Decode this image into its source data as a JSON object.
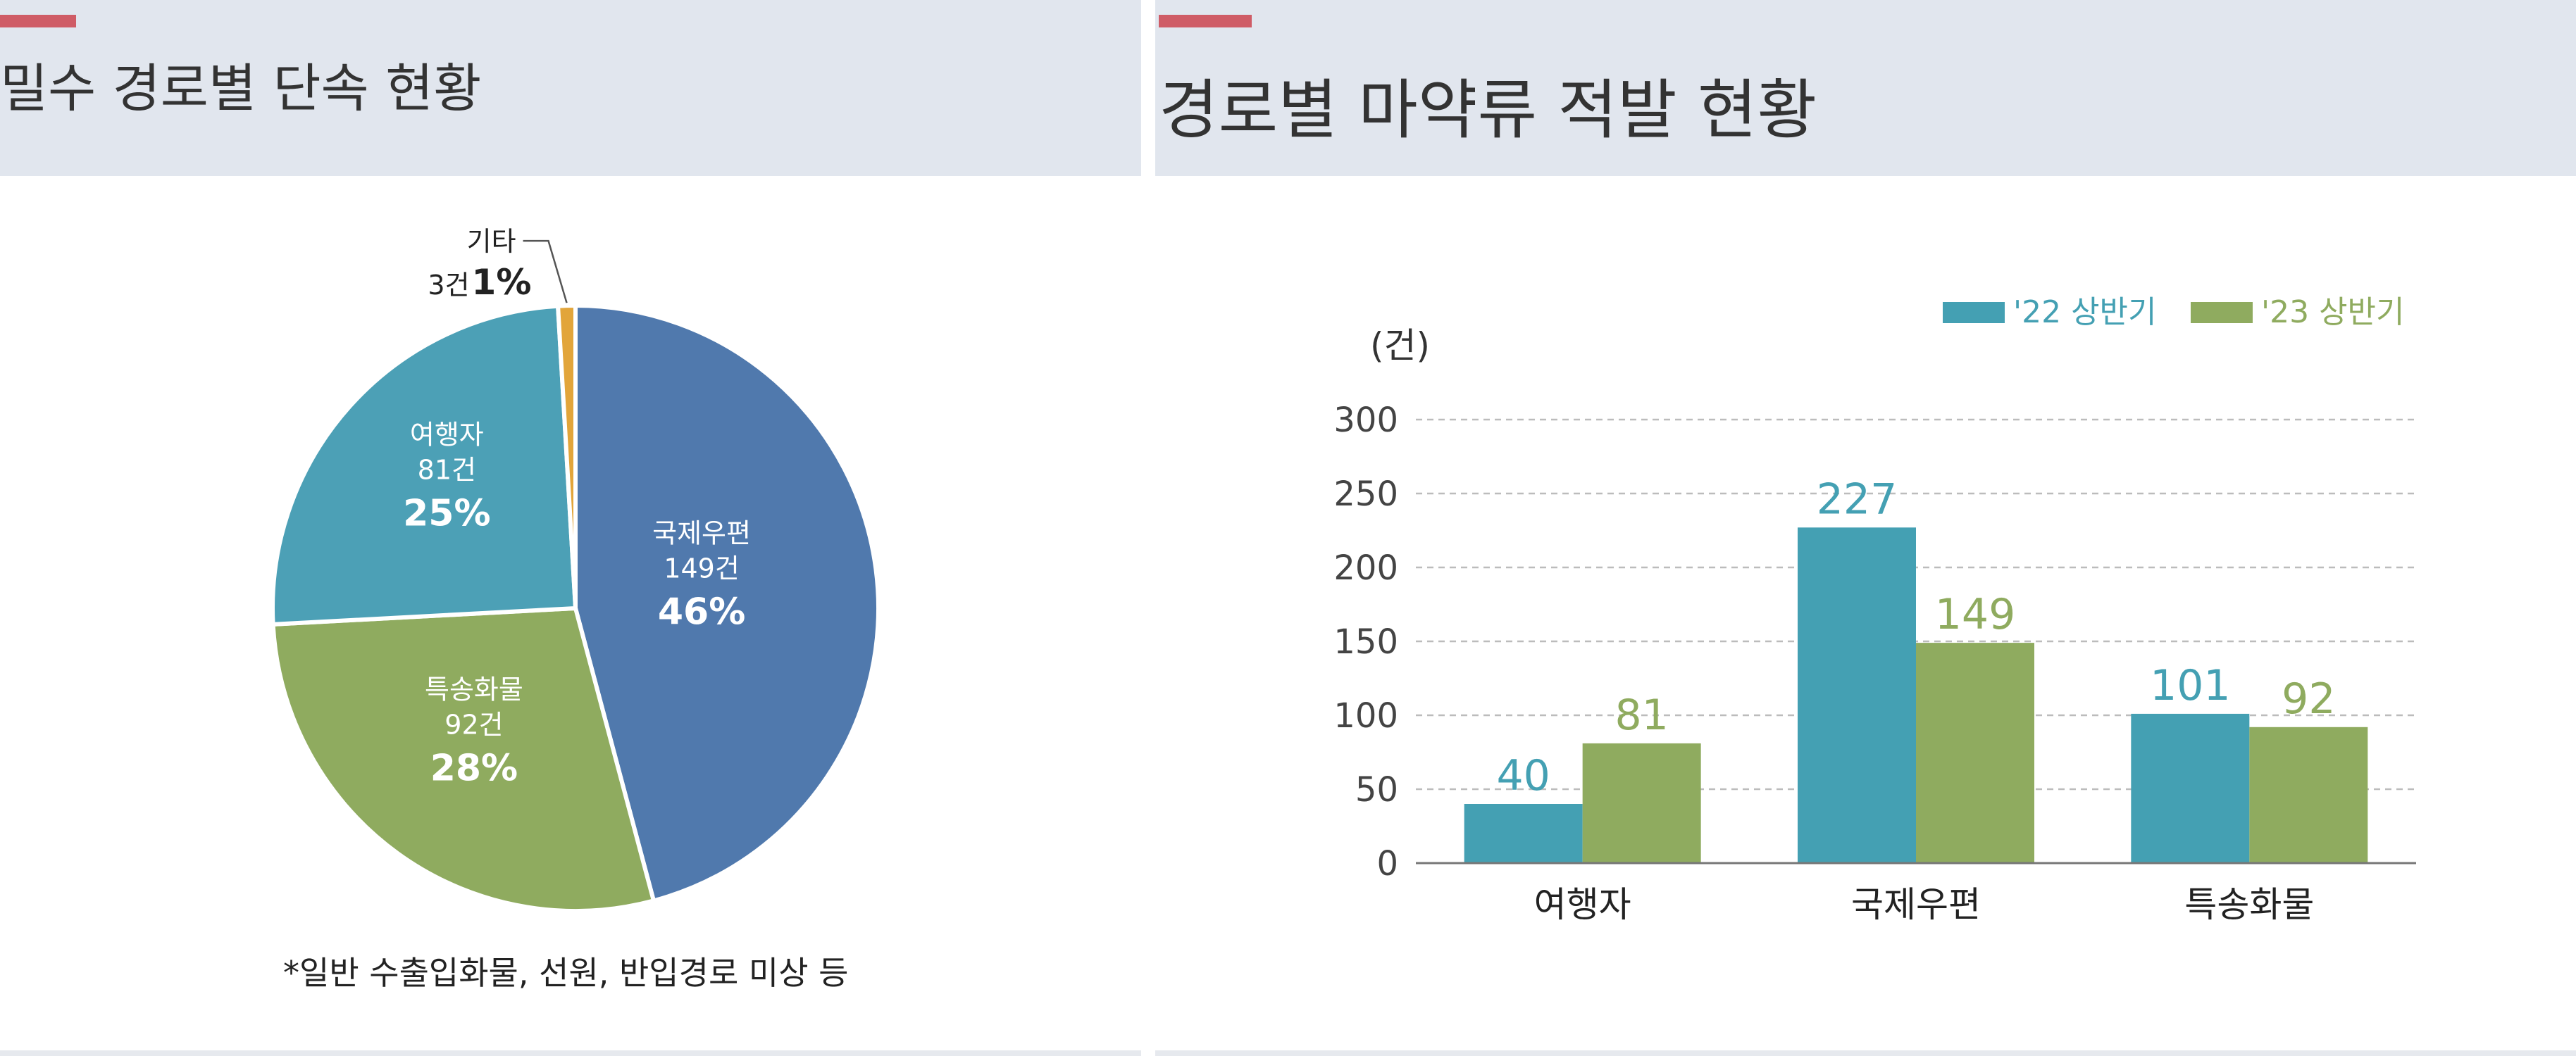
{
  "left": {
    "title": "밀수 경로별 단속 현황",
    "footnote": "*일반 수출입화물, 선원, 반입경로 미상 등"
  },
  "right": {
    "title": "경로별 마약류 적발 현황"
  },
  "colors": {
    "header_bg": "#e1e6ee",
    "accent": "#cf5c66",
    "pie_postal": "#5079ad",
    "pie_cargo": "#8fab5f",
    "pie_traveler": "#4ca0b6",
    "pie_other": "#e2a53a",
    "bar_22": "#44a0b3",
    "bar_23": "#8fab5f"
  },
  "chart_data": [
    {
      "type": "pie",
      "slices": [
        {
          "label": "국제우편",
          "count_label": "149건",
          "count": 149,
          "pct_label": "46%"
        },
        {
          "label": "특송화물",
          "count_label": "92건",
          "count": 92,
          "pct_label": "28%"
        },
        {
          "label": "여행자",
          "count_label": "81건",
          "count": 81,
          "pct_label": "25%"
        },
        {
          "label": "기타",
          "count_label": "3건",
          "count": 3,
          "pct_label": "1%"
        }
      ]
    },
    {
      "type": "bar",
      "unit": "(건)",
      "categories": [
        "여행자",
        "국제우편",
        "특송화물"
      ],
      "series": [
        {
          "name": "'22 상반기",
          "values": [
            40,
            227,
            101
          ],
          "labels": [
            "40",
            "227",
            "101"
          ]
        },
        {
          "name": "'23 상반기",
          "values": [
            81,
            149,
            92
          ],
          "labels": [
            "81",
            "149",
            "92"
          ]
        }
      ],
      "ylim": [
        0,
        300
      ],
      "yticks": [
        0,
        50,
        100,
        150,
        200,
        250,
        300
      ],
      "ytick_labels": [
        "0",
        "50",
        "100",
        "150",
        "200",
        "250",
        "300"
      ],
      "grid": true,
      "grid_style": "dashed",
      "legend_position": "top-right"
    }
  ]
}
